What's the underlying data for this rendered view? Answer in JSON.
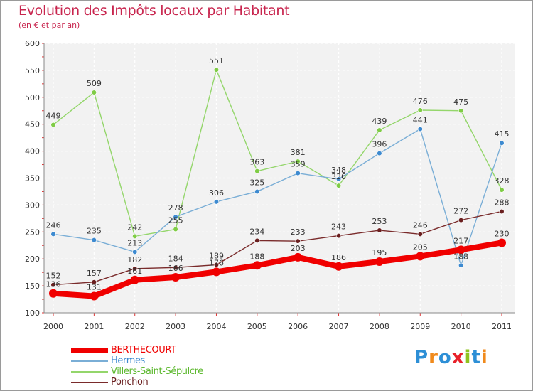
{
  "header": {
    "title": "Evolution des Impôts locaux par Habitant",
    "subtitle": "(en € et par an)"
  },
  "logo": {
    "letters": [
      "P",
      "r",
      "o",
      "x",
      "i",
      "t",
      "i"
    ],
    "colors": [
      "#2d8fd6",
      "#f08a1c",
      "#2d8fd6",
      "#e8212a",
      "#8fc31f",
      "#2d8fd6",
      "#f08a1c"
    ]
  },
  "chart_data": {
    "type": "line",
    "categories": [
      "2000",
      "2001",
      "2002",
      "2003",
      "2004",
      "2005",
      "2006",
      "2007",
      "2008",
      "2009",
      "2010",
      "2011"
    ],
    "ylim": [
      100,
      600
    ],
    "yticks": [
      "100",
      "150",
      "200",
      "250",
      "300",
      "350",
      "400",
      "450",
      "500",
      "550",
      "600"
    ],
    "grid": true,
    "legend_position": "bottom-left",
    "series": [
      {
        "name": "Villers-Saint-Sépulcre",
        "color": "#94d66b",
        "point_color": "#7fcc45",
        "values": [
          449,
          509,
          242,
          255,
          551,
          363,
          381,
          336,
          439,
          476,
          475,
          328
        ],
        "labels": [
          "449",
          "509",
          "242",
          "255",
          "551",
          "363",
          "381",
          "336",
          "439",
          "476",
          "475",
          "328"
        ]
      },
      {
        "name": "Hermes",
        "color": "#7aaed6",
        "point_color": "#3d8ad0",
        "values": [
          246,
          235,
          213,
          278,
          306,
          325,
          359,
          348,
          396,
          441,
          188,
          415
        ],
        "labels": [
          "246",
          "235",
          "213",
          "278",
          "306",
          "325",
          "359",
          "348",
          "396",
          "441",
          "188",
          "415"
        ]
      },
      {
        "name": "Ponchon",
        "color": "#7a2b2b",
        "point_color": "#6a1f1f",
        "values": [
          152,
          157,
          182,
          184,
          189,
          234,
          233,
          243,
          253,
          246,
          272,
          288
        ],
        "labels": [
          "152",
          "157",
          "182",
          "184",
          "189",
          "234",
          "233",
          "243",
          "253",
          "246",
          "272",
          "288"
        ]
      },
      {
        "name": "BERTHECOURT",
        "color": "#f00000",
        "point_color": "#f00000",
        "values": [
          136,
          131,
          161,
          166,
          176,
          188,
          203,
          186,
          195,
          205,
          217,
          230
        ],
        "labels": [
          "136",
          "131",
          "161",
          "166",
          "176",
          "188",
          "203",
          "186",
          "195",
          "205",
          "217",
          "230"
        ]
      }
    ],
    "legend_order": [
      "BERTHECOURT",
      "Hermes",
      "Villers-Saint-Sépulcre",
      "Ponchon"
    ]
  }
}
